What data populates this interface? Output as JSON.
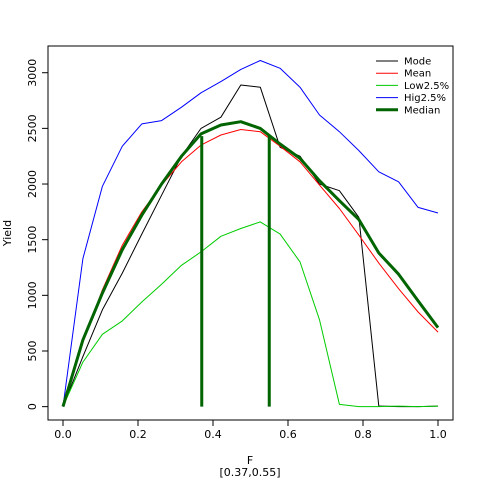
{
  "chart_data": {
    "type": "line",
    "title": "",
    "xlabel": "F",
    "xlabel_sub": "[0.37,0.55]",
    "ylabel": "Yield",
    "xlim": [
      -0.04,
      1.04
    ],
    "ylim": [
      -120,
      3240
    ],
    "xticks": [
      "0.0",
      "0.2",
      "0.4",
      "0.6",
      "0.8",
      "1.0"
    ],
    "xtick_values": [
      0,
      0.2,
      0.4,
      0.6,
      0.8,
      1.0
    ],
    "yticks": [
      "0",
      "500",
      "1000",
      "1500",
      "2000",
      "2500",
      "3000"
    ],
    "ytick_values": [
      0,
      500,
      1000,
      1500,
      2000,
      2500,
      3000
    ],
    "legend_position": "top-right",
    "x": [
      0,
      0.053,
      0.105,
      0.158,
      0.21,
      0.263,
      0.316,
      0.368,
      0.421,
      0.474,
      0.526,
      0.579,
      0.632,
      0.684,
      0.737,
      0.789,
      0.842,
      0.895,
      0.947,
      1.0
    ],
    "series": [
      {
        "name": "Mode",
        "color": "#000000",
        "width": 1,
        "values": [
          0,
          450,
          870,
          1200,
          1550,
          1900,
          2250,
          2500,
          2600,
          2890,
          2870,
          2330,
          2250,
          2000,
          1940,
          1700,
          5,
          0,
          0,
          5
        ]
      },
      {
        "name": "Mean",
        "color": "#ff0000",
        "width": 1,
        "values": [
          0,
          580,
          1050,
          1450,
          1750,
          1990,
          2200,
          2350,
          2440,
          2490,
          2470,
          2340,
          2200,
          1990,
          1780,
          1540,
          1290,
          1060,
          850,
          670
        ]
      },
      {
        "name": "Low2.5%",
        "color": "#00cc00",
        "width": 1,
        "values": [
          0,
          400,
          650,
          770,
          940,
          1100,
          1270,
          1390,
          1530,
          1600,
          1660,
          1550,
          1300,
          780,
          20,
          0,
          0,
          5,
          0,
          5
        ]
      },
      {
        "name": "Hig2.5%",
        "color": "#0000ff",
        "width": 1,
        "values": [
          0,
          1330,
          1980,
          2340,
          2540,
          2570,
          2690,
          2820,
          2920,
          3030,
          3110,
          3040,
          2870,
          2620,
          2470,
          2300,
          2110,
          2020,
          1790,
          1740
        ]
      },
      {
        "name": "Median",
        "color": "#006400",
        "width": 3,
        "values": [
          0,
          600,
          1020,
          1410,
          1720,
          2000,
          2250,
          2450,
          2530,
          2560,
          2500,
          2360,
          2230,
          2030,
          1850,
          1680,
          1380,
          1190,
          950,
          710
        ]
      }
    ],
    "vertical_lines": [
      {
        "x": 0.37,
        "y0": 0,
        "y1": 2430,
        "color": "#006400"
      },
      {
        "x": 0.55,
        "y0": 0,
        "y1": 2430,
        "color": "#006400"
      }
    ]
  }
}
